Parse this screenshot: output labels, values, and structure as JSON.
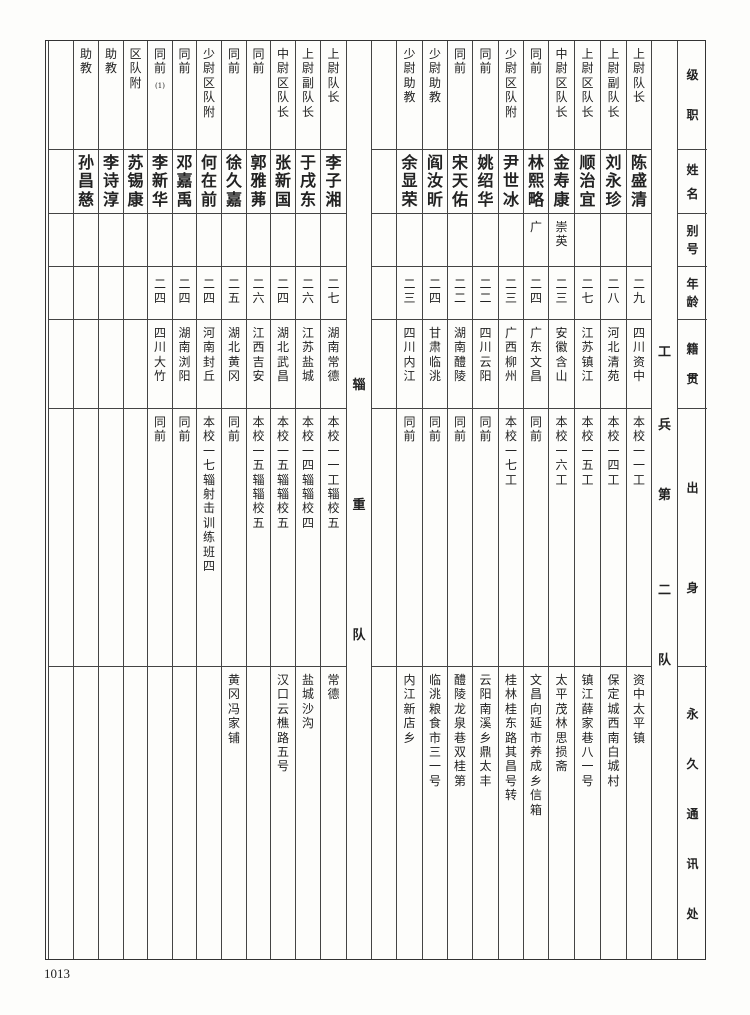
{
  "headers": [
    "级职",
    "姓名",
    "别号",
    "年龄",
    "籍贯",
    "出身",
    "永久通讯处"
  ],
  "groups": [
    {
      "section": [
        "工",
        "兵",
        "第",
        "二",
        "队"
      ],
      "rows": [
        {
          "rank": "上尉队长",
          "name": "陈盛清",
          "alias": "",
          "age": "二九",
          "native": "四川资中",
          "origin": "本校一一工",
          "address": "资中太平镇"
        },
        {
          "rank": "上尉副队长",
          "name": "刘永珍",
          "alias": "",
          "age": "二八",
          "native": "河北清苑",
          "origin": "本校一四工",
          "address": "保定城西南白城村"
        },
        {
          "rank": "上尉区队长",
          "name": "顺治宜",
          "alias": "",
          "age": "二七",
          "native": "江苏镇江",
          "origin": "本校一五工",
          "address": "镇江薛家巷八一号"
        },
        {
          "rank": "中尉区队长",
          "name": "金寿康",
          "alias": "崇英",
          "age": "二三",
          "native": "安徽含山",
          "origin": "本校一六工",
          "address": "太平茂林思损斋"
        },
        {
          "rank": "同前",
          "name": "林熙略",
          "alias": "广",
          "age": "二四",
          "native": "广东文昌",
          "origin": "同前",
          "address": "文昌向延市养成乡信箱"
        },
        {
          "rank": "少尉区队附",
          "name": "尹世冰",
          "alias": "",
          "age": "二三",
          "native": "广西柳州",
          "origin": "本校一七工",
          "address": "桂林桂东路其昌号转"
        },
        {
          "rank": "同前",
          "name": "姚绍华",
          "alias": "",
          "age": "二二",
          "native": "四川云阳",
          "origin": "同前",
          "address": "云阳南溪乡鼎太丰"
        },
        {
          "rank": "同前",
          "name": "宋天佑",
          "alias": "",
          "age": "二二",
          "native": "湖南醴陵",
          "origin": "同前",
          "address": "醴陵龙泉巷双桂第"
        },
        {
          "rank": "少尉助教",
          "name": "阎汝昕",
          "alias": "",
          "age": "二四",
          "native": "甘肃临洮",
          "origin": "同前",
          "address": "临洮粮食市三一号"
        },
        {
          "rank": "少尉助教",
          "name": "余显荣",
          "alias": "",
          "age": "二三",
          "native": "四川内江",
          "origin": "同前",
          "address": "内江新店乡"
        },
        {
          "rank": "",
          "name": "",
          "alias": "",
          "age": "",
          "native": "",
          "origin": "",
          "address": ""
        }
      ]
    },
    {
      "section": [
        "辎",
        "重",
        "队"
      ],
      "rows": [
        {
          "rank": "上尉队长",
          "name": "李子湘",
          "alias": "",
          "age": "二七",
          "native": "湖南常德",
          "origin": "本校一一工辎校五",
          "address": "常德"
        },
        {
          "rank": "上尉副队长",
          "name": "于戌东",
          "alias": "",
          "age": "二六",
          "native": "江苏盐城",
          "origin": "本校一四辎辎校四",
          "address": "盐城沙沟"
        },
        {
          "rank": "中尉区队长",
          "name": "张新国",
          "alias": "",
          "age": "二四",
          "native": "湖北武昌",
          "origin": "本校一五辎辎校五",
          "address": "汉口云樵路五号"
        },
        {
          "rank": "同前",
          "name": "郭雅茀",
          "alias": "",
          "age": "二六",
          "native": "江西吉安",
          "origin": "本校一五辎辎校五",
          "address": ""
        },
        {
          "rank": "同前",
          "name": "徐久嘉",
          "alias": "",
          "age": "二五",
          "native": "湖北黄冈",
          "origin": "同前",
          "address": "黄冈冯家铺"
        },
        {
          "rank": "少尉区队附",
          "name": "何在前",
          "alias": "",
          "age": "二四",
          "native": "河南封丘",
          "origin": "本校一七辎射击训练班四",
          "address": ""
        },
        {
          "rank": "同前",
          "name": "邓嘉禹",
          "alias": "",
          "age": "二四",
          "native": "湖南浏阳",
          "origin": "同前",
          "address": ""
        },
        {
          "rank": "同前",
          "note": "(1)",
          "name": "李新华",
          "alias": "",
          "age": "二四",
          "native": "四川大竹",
          "origin": "同前",
          "address": ""
        },
        {
          "rank": "区队附",
          "name": "苏锡康",
          "alias": "",
          "age": "",
          "native": "",
          "origin": "",
          "address": ""
        },
        {
          "rank": "助教",
          "name": "李诗淳",
          "alias": "",
          "age": "",
          "native": "",
          "origin": "",
          "address": ""
        },
        {
          "rank": "助教",
          "name": "孙昌慈",
          "alias": "",
          "age": "",
          "native": "",
          "origin": "",
          "address": ""
        },
        {
          "rank": "",
          "name": "",
          "alias": "",
          "age": "",
          "native": "",
          "origin": "",
          "address": ""
        }
      ]
    }
  ],
  "page_number": "1013"
}
